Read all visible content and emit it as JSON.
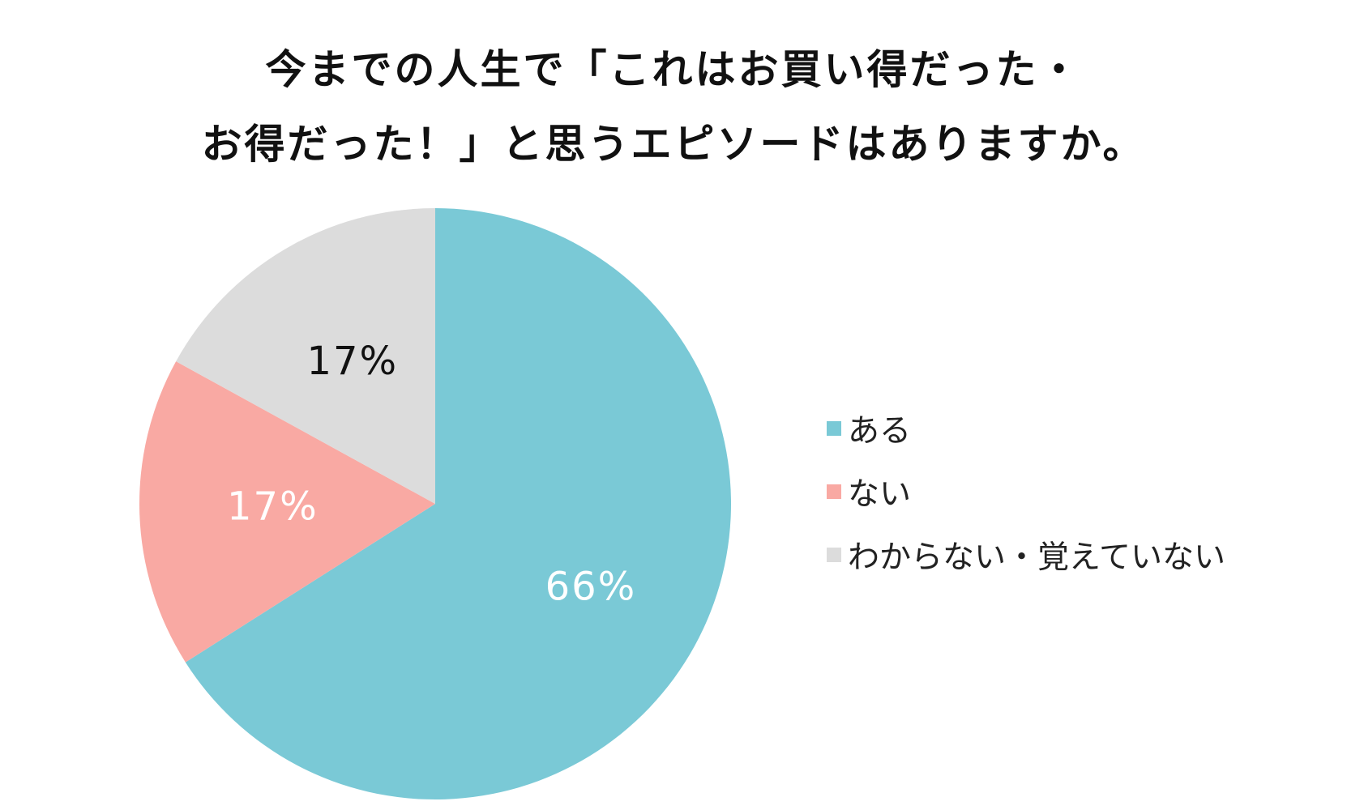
{
  "chart_data": {
    "type": "pie",
    "title_lines": [
      "今までの人生で「これはお買い得だった・",
      "お得だった！」と思うエピソードはありますか。"
    ],
    "slices": [
      {
        "name": "ある",
        "value": 66,
        "label": "66%",
        "color": "#7ac9d6",
        "label_color": "#ffffff"
      },
      {
        "name": "ない",
        "value": 17,
        "label": "17%",
        "color": "#f9a9a3",
        "label_color": "#ffffff"
      },
      {
        "name": "わからない・覚えていない",
        "value": 17,
        "label": "17%",
        "color": "#dcdcdc",
        "label_color": "#111111"
      }
    ],
    "start_angle": "12 o'clock",
    "direction": "clockwise",
    "legend_position": "right"
  }
}
